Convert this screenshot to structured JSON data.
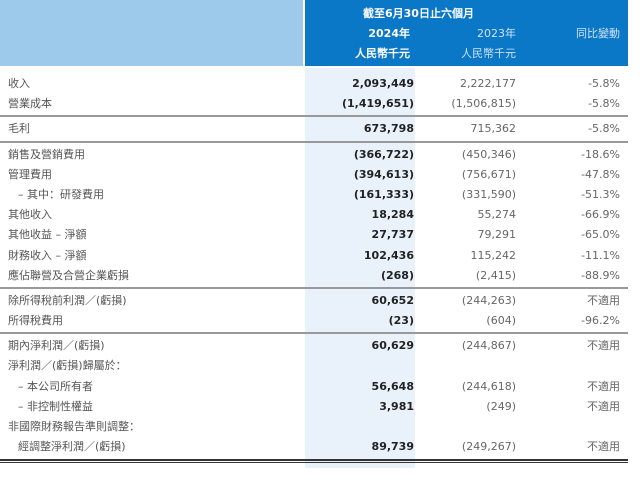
{
  "header": {
    "period": "截至6月30日止六個月",
    "col_2024": "2024年",
    "col_2023": "2023年",
    "col_change": "同比變動",
    "unit_2024": "人民幣千元",
    "unit_2023": "人民幣千元"
  },
  "rows": [
    {
      "label": "收入",
      "v2024": "2,093,449",
      "v2023": "2,222,177",
      "change": "-5.8%"
    },
    {
      "label": "營業成本",
      "v2024": "(1,419,651)",
      "v2023": "(1,506,815)",
      "change": "-5.8%"
    },
    {
      "label": "毛利",
      "v2024": "673,798",
      "v2023": "715,362",
      "change": "-5.8%"
    },
    {
      "label": "銷售及營銷費用",
      "v2024": "(366,722)",
      "v2023": "(450,346)",
      "change": "-18.6%"
    },
    {
      "label": "管理費用",
      "v2024": "(394,613)",
      "v2023": "(756,671)",
      "change": "-47.8%"
    },
    {
      "label": "– 其中：研發費用",
      "v2024": "(161,333)",
      "v2023": "(331,590)",
      "change": "-51.3%"
    },
    {
      "label": "其他收入",
      "v2024": "18,284",
      "v2023": "55,274",
      "change": "-66.9%"
    },
    {
      "label": "其他收益 – 淨額",
      "v2024": "27,737",
      "v2023": "79,291",
      "change": "-65.0%"
    },
    {
      "label": "財務收入 – 淨額",
      "v2024": "102,436",
      "v2023": "115,242",
      "change": "-11.1%"
    },
    {
      "label": "應佔聯營及合營企業虧損",
      "v2024": "(268)",
      "v2023": "(2,415)",
      "change": "-88.9%"
    },
    {
      "label": "除所得稅前利潤／(虧損)",
      "v2024": "60,652",
      "v2023": "(244,263)",
      "change": "不適用"
    },
    {
      "label": "所得稅費用",
      "v2024": "(23)",
      "v2023": "(604)",
      "change": "-96.2%"
    },
    {
      "label": "期內淨利潤／(虧損)",
      "v2024": "60,629",
      "v2023": "(244,867)",
      "change": "不適用"
    },
    {
      "label": "淨利潤／(虧損)歸屬於：",
      "v2024": "",
      "v2023": "",
      "change": ""
    },
    {
      "label": "– 本公司所有者",
      "v2024": "56,648",
      "v2023": "(244,618)",
      "change": "不適用"
    },
    {
      "label": "– 非控制性權益",
      "v2024": "3,981",
      "v2023": "(249)",
      "change": "不適用"
    },
    {
      "label": "非國際財務報告準則調整：",
      "v2024": "",
      "v2023": "",
      "change": ""
    },
    {
      "label": "經調整淨利潤／(虧損)",
      "v2024": "89,739",
      "v2023": "(249,267)",
      "change": "不適用"
    }
  ]
}
